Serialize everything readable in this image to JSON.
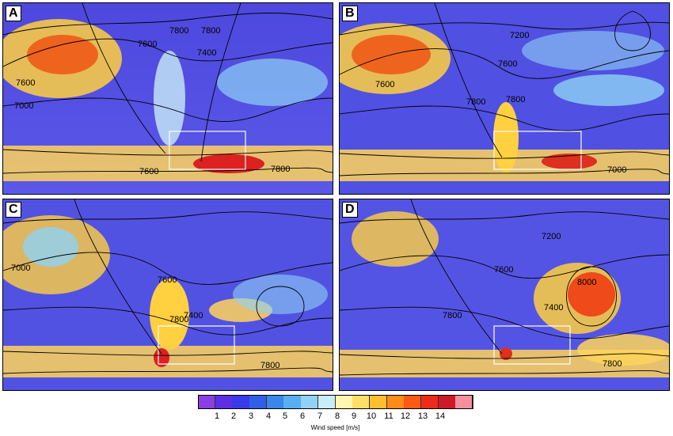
{
  "panels": [
    {
      "label": "A",
      "contours": [
        "7600",
        "7800",
        "7400",
        "7000",
        "7800",
        "7600",
        "7800",
        "7600"
      ]
    },
    {
      "label": "B",
      "contours": [
        "7200",
        "7600",
        "7600",
        "7800",
        "7800",
        "7000"
      ]
    },
    {
      "label": "C",
      "contours": [
        "7000",
        "7600",
        "7800",
        "7400",
        "7800"
      ]
    },
    {
      "label": "D",
      "contours": [
        "7200",
        "7600",
        "7800",
        "7400",
        "8000",
        "7800"
      ]
    }
  ],
  "colorbar": {
    "ticks": [
      "1",
      "2",
      "3",
      "4",
      "5",
      "6",
      "7",
      "8",
      "9",
      "10",
      "11",
      "12",
      "13",
      "14"
    ],
    "title": "Wind speed [m/s]",
    "colors": [
      "#8a3fe0",
      "#5a2fe6",
      "#3a3ae8",
      "#2f5fe6",
      "#3a86ea",
      "#58aef0",
      "#8fd2f5",
      "#c8ecf8",
      "#fff7b0",
      "#ffe066",
      "#ffbf2e",
      "#ff8c1a",
      "#ff5a14",
      "#ee2a1a",
      "#cc1a28",
      "#f58fa0"
    ]
  }
}
